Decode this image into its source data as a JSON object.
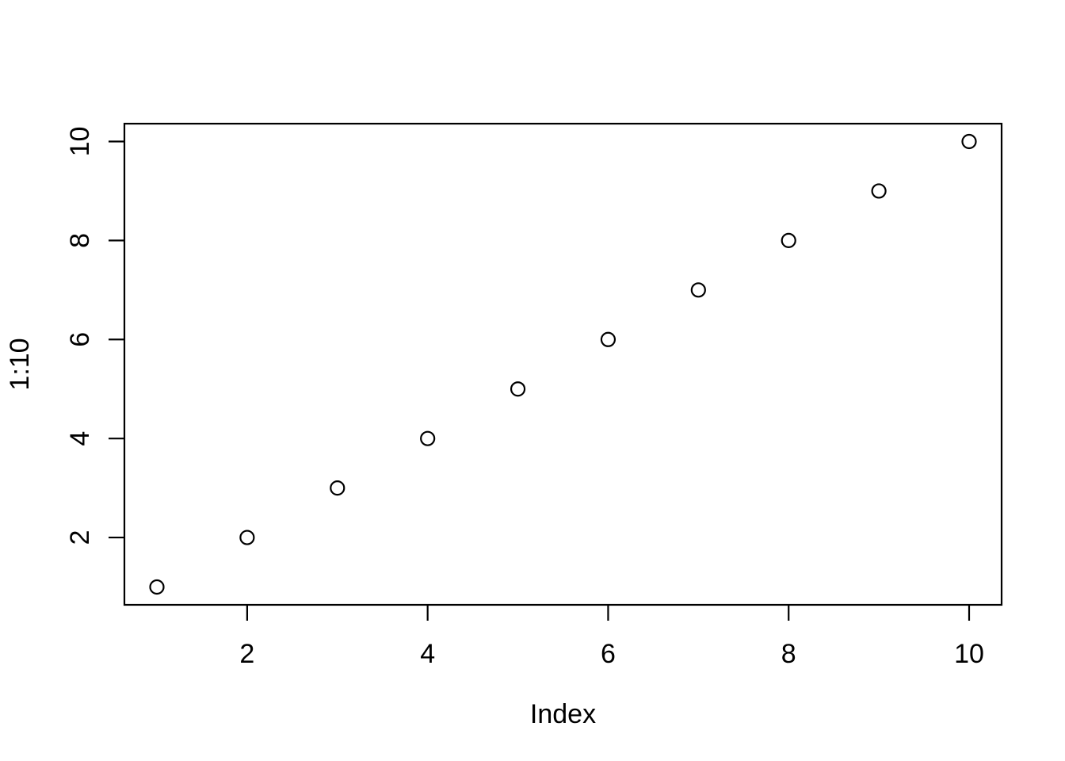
{
  "figure": {
    "background_color": "#ffffff",
    "foreground_color": "#000000"
  },
  "chart_data": {
    "type": "scatter",
    "title": "",
    "xlabel": "Index",
    "ylabel": "1:10",
    "x": [
      1,
      2,
      3,
      4,
      5,
      6,
      7,
      8,
      9,
      10
    ],
    "y": [
      1,
      2,
      3,
      4,
      5,
      6,
      7,
      8,
      9,
      10
    ],
    "xticks": [
      2,
      4,
      6,
      8,
      10
    ],
    "yticks": [
      2,
      4,
      6,
      8,
      10
    ],
    "xtick_labels": [
      "2",
      "4",
      "6",
      "8",
      "10"
    ],
    "ytick_labels": [
      "2",
      "4",
      "6",
      "8",
      "10"
    ],
    "xlim": [
      0.64,
      10.36
    ],
    "ylim": [
      0.64,
      10.36
    ],
    "grid": false,
    "legend_position": "none",
    "marker": "open-circle",
    "marker_color": "#000000",
    "style": "r-base-plot"
  }
}
